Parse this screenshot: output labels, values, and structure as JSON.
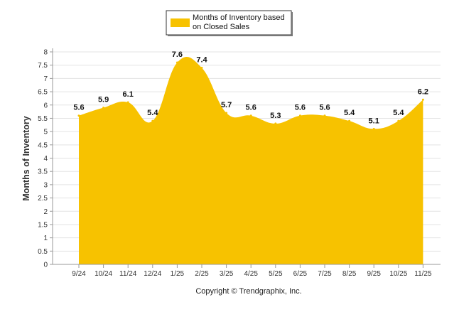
{
  "chart_data": {
    "type": "area",
    "title": "",
    "legend": {
      "label_line1": "Months of Inventory based",
      "label_line2": "on Closed Sales",
      "position": "top-center"
    },
    "categories": [
      "9/24",
      "10/24",
      "11/24",
      "12/24",
      "1/25",
      "2/25",
      "3/25",
      "4/25",
      "5/25",
      "6/25",
      "7/25",
      "8/25",
      "9/25",
      "10/25",
      "11/25"
    ],
    "values": [
      5.6,
      5.9,
      6.1,
      5.4,
      7.6,
      7.4,
      5.7,
      5.6,
      5.3,
      5.6,
      5.6,
      5.4,
      5.1,
      5.4,
      6.2
    ],
    "value_labels": [
      "5.6",
      "5.9",
      "6.1",
      "5.4",
      "7.6",
      "7.4",
      "5.7",
      "5.6",
      "5.3",
      "5.6",
      "5.6",
      "5.4",
      "5.1",
      "5.4",
      "6.2"
    ],
    "xlabel": "",
    "ylabel": "Months of Inventory",
    "ylim": [
      0,
      8
    ],
    "yticks": [
      "0",
      "0.5",
      "1",
      "1.5",
      "2",
      "2.5",
      "3",
      "3.5",
      "4",
      "4.5",
      "5",
      "5.5",
      "6",
      "6.5",
      "7",
      "7.5",
      "8"
    ],
    "grid": true,
    "series_color": "#f7c200",
    "footer": "Copyright © Trendgraphix, Inc."
  }
}
